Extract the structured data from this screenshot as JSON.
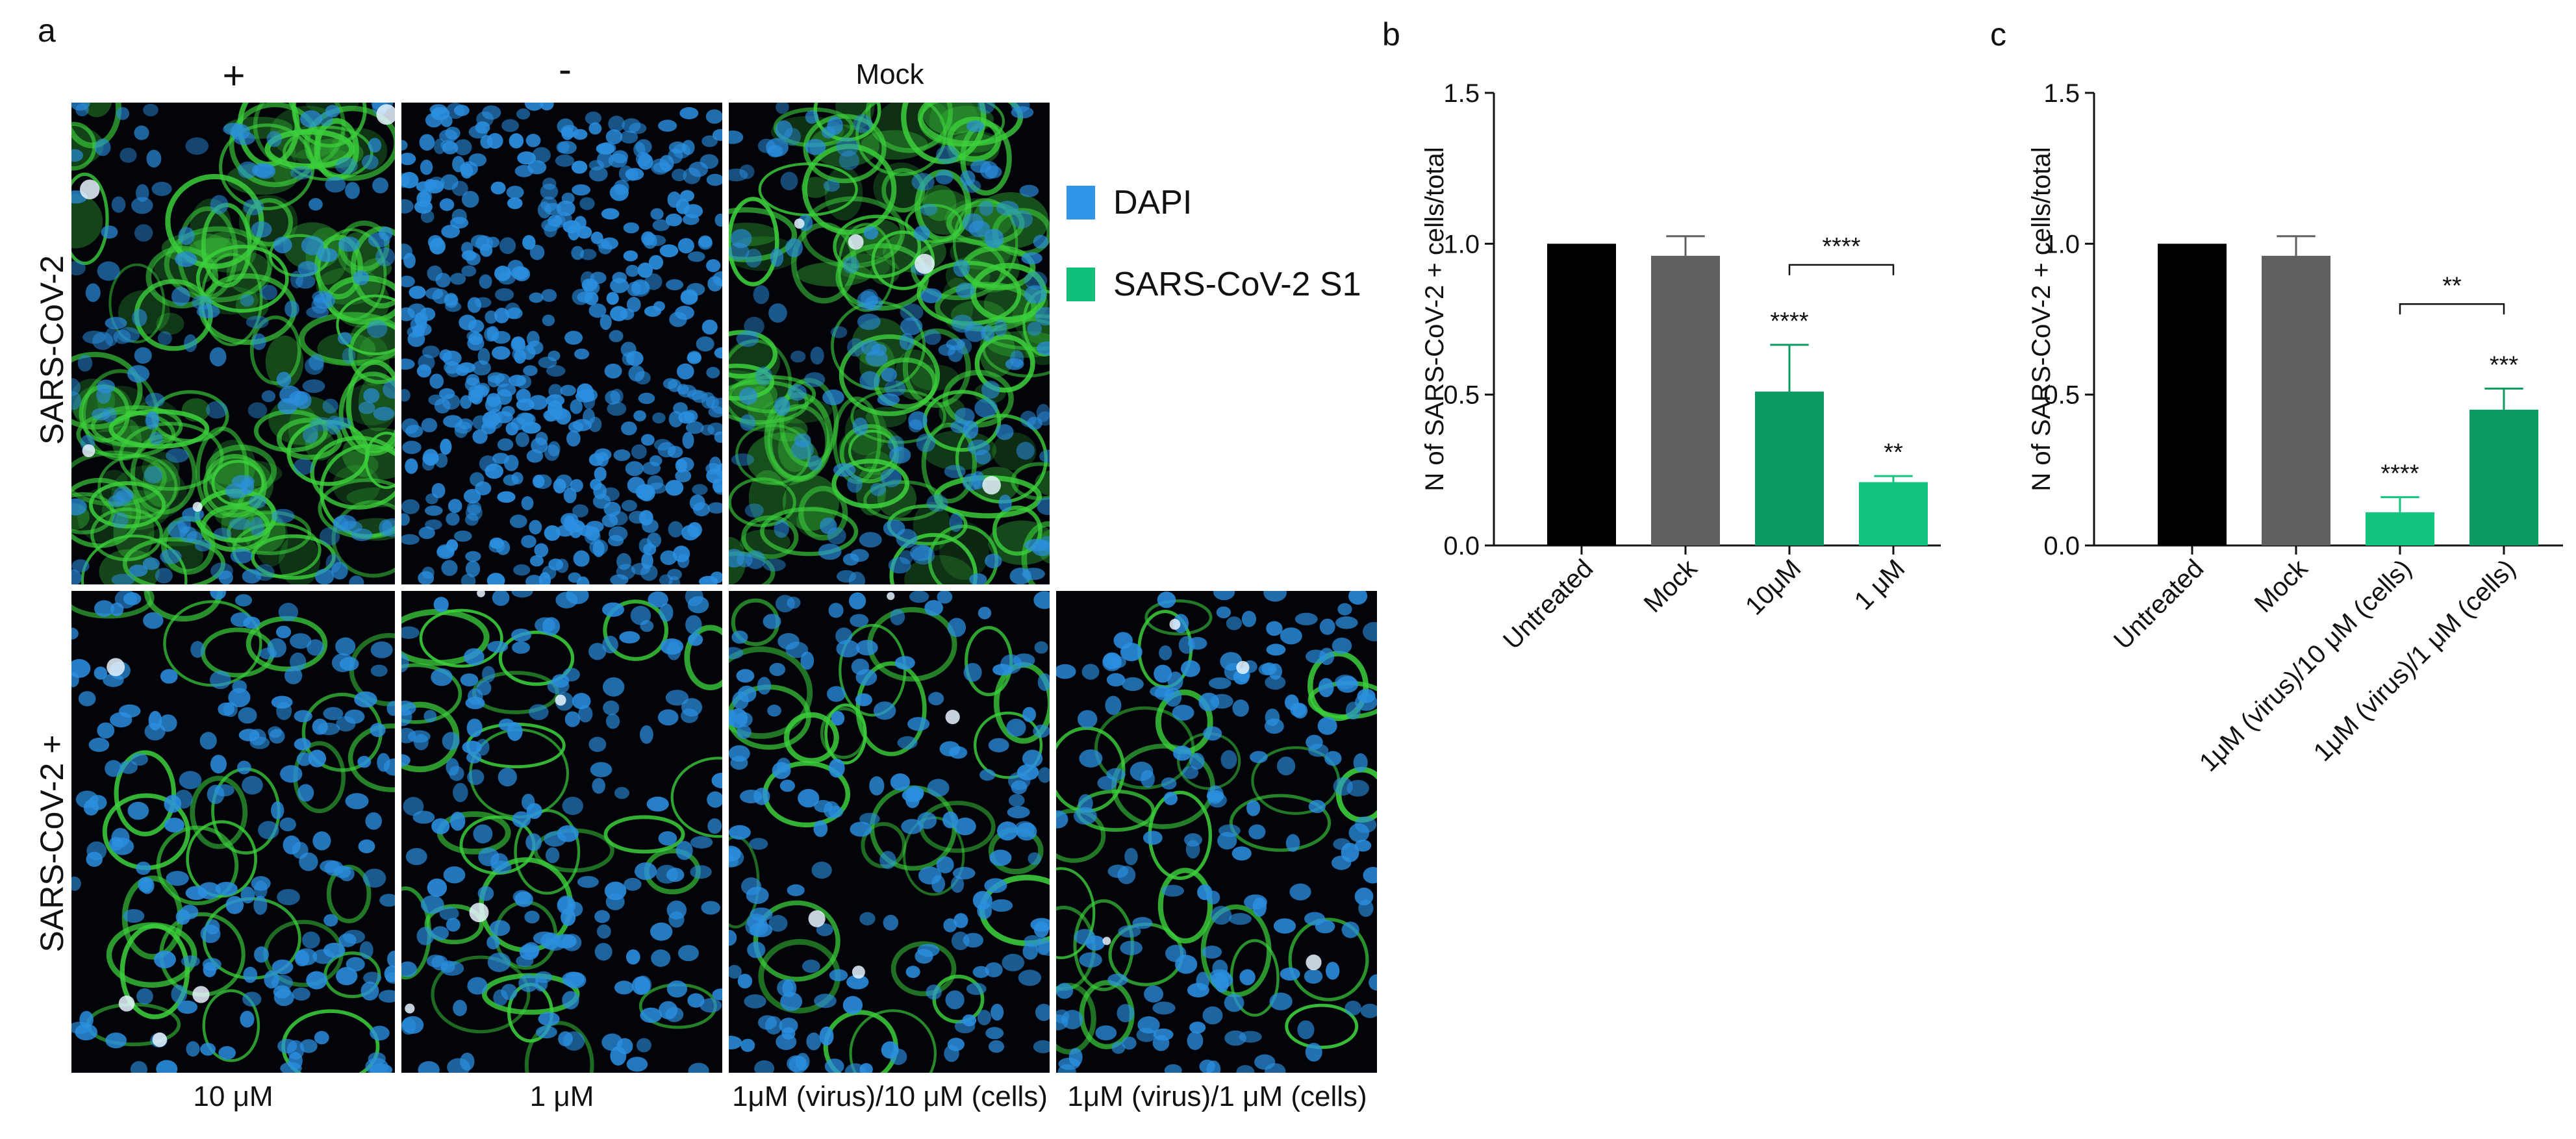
{
  "panel_a": {
    "letter": "a",
    "column_headers": [
      "+",
      "-",
      "Mock"
    ],
    "row_labels": [
      "SARS-CoV-2",
      "SARS-CoV-2 +"
    ],
    "column_labels_bottom": [
      "10 μM",
      "1 μM",
      "1μM (virus)/10 μM (cells)",
      "1μM (virus)/1 μM (cells)"
    ],
    "legend": [
      {
        "label": "DAPI",
        "color": "#2f95e6"
      },
      {
        "label": "SARS-CoV-2 S1",
        "color": "#10c07a"
      }
    ],
    "images": {
      "row1": [
        "green-infected",
        "blue-nuclei-only",
        "green-infected-mock"
      ],
      "row2": [
        "green-sparse-10uM",
        "green-sparse-1uM",
        "green-sparse-virus10",
        "green-sparse-virus1"
      ]
    },
    "colors": {
      "nuclei": "#2b8fe0",
      "spike": "#3ccf3c",
      "background": "#02040a"
    }
  },
  "chart_data": [
    {
      "letter": "b",
      "type": "bar",
      "ylabel": "N of SARS-CoV-2 + cells/total",
      "xlabel": "",
      "ylim": [
        0,
        1.5
      ],
      "yticks": [
        "0.0",
        "0.5",
        "1.0",
        "1.5"
      ],
      "categories": [
        "Untreated",
        "Mock",
        "10μM",
        "1 μM"
      ],
      "values": [
        1.0,
        0.96,
        0.51,
        0.21
      ],
      "errors": [
        0.0,
        0.065,
        0.155,
        0.02
      ],
      "colors": [
        "#000000",
        "#606060",
        "#0a9a62",
        "#13c47f"
      ],
      "significance": [
        {
          "bar": 2,
          "label": "****"
        },
        {
          "bar": 3,
          "label": "**"
        },
        {
          "between": [
            2,
            3
          ],
          "label": "****",
          "y": 0.93
        }
      ]
    },
    {
      "letter": "c",
      "type": "bar",
      "ylabel": "N of SARS-CoV-2 + cells/total",
      "xlabel": "",
      "ylim": [
        0,
        1.5
      ],
      "yticks": [
        "0.0",
        "0.5",
        "1.0",
        "1.5"
      ],
      "categories": [
        "Untreated",
        "Mock",
        "1μM (virus)/10 μM (cells)",
        "1μM (virus)/1  μM (cells)"
      ],
      "values": [
        1.0,
        0.96,
        0.11,
        0.45
      ],
      "errors": [
        0.0,
        0.065,
        0.05,
        0.07
      ],
      "colors": [
        "#000000",
        "#606060",
        "#13c47f",
        "#0a9a62"
      ],
      "significance": [
        {
          "bar": 2,
          "label": "****"
        },
        {
          "bar": 3,
          "label": "***"
        },
        {
          "between": [
            2,
            3
          ],
          "label": "**",
          "y": 0.8
        }
      ]
    }
  ]
}
